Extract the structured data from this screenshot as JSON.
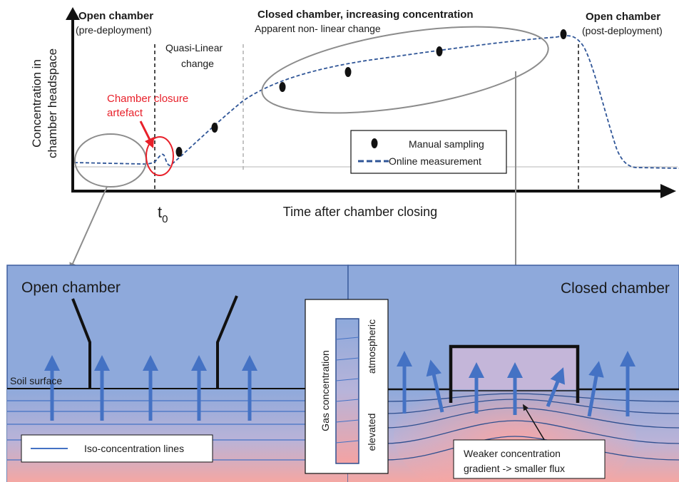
{
  "top": {
    "y_axis_label_line1": "Concentration in",
    "y_axis_label_line2": "chamber headspace",
    "x_axis_label": "Time after chamber closing",
    "t0_base": "t",
    "t0_sub": "0",
    "open_pre_title": "Open chamber",
    "open_pre_sub": "(pre-deployment)",
    "quasi_line1": "Quasi-Linear",
    "quasi_line2": "change",
    "closed_title": "Closed chamber, increasing concentration",
    "closed_sub": "Apparent non- linear change",
    "open_post_title": "Open chamber",
    "open_post_sub": "(post-deployment)",
    "artefact_line1": "Chamber closure",
    "artefact_line2": "artefact",
    "legend_manual": "Manual sampling",
    "legend_online": "Online measurement"
  },
  "bottom": {
    "open_title": "Open chamber",
    "closed_title": "Closed chamber",
    "soil_surface": "Soil surface",
    "iso_lines_legend": "Iso-concentration lines",
    "gas_scale_title": "Gas concentration",
    "gas_scale_top": "atmospheric",
    "gas_scale_bottom": "elevated",
    "weaker_line1": "Weaker concentration",
    "weaker_line2": "gradient -> smaller flux"
  },
  "colors": {
    "artefact_red": "#e8202a",
    "dashed_blue": "#2f5597",
    "arrow_blue": "#4472c4",
    "sky_blue": "#8ea9db",
    "soil_pink": "#f4a7a3"
  }
}
